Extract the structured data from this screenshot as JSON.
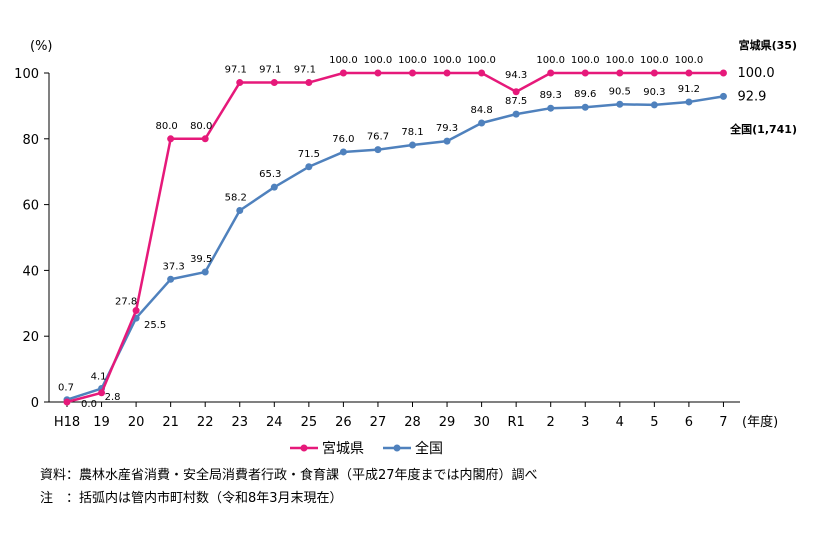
{
  "chart_data": {
    "type": "line",
    "y_unit": "(%)",
    "x_unit": "(年度)",
    "categories": [
      "H18",
      "19",
      "20",
      "21",
      "22",
      "23",
      "24",
      "25",
      "26",
      "27",
      "28",
      "29",
      "30",
      "R1",
      "2",
      "3",
      "4",
      "5",
      "6",
      "7"
    ],
    "ylim": [
      0,
      100
    ],
    "yticks": [
      0,
      20,
      40,
      60,
      80,
      100
    ],
    "grid": false,
    "legend_position": "bottom",
    "series": [
      {
        "name": "宮城県",
        "end_label": "宮城県(35)",
        "last_value_label": "100.0",
        "color": "#E6197A",
        "values": [
          0.0,
          2.8,
          27.8,
          80.0,
          80.0,
          97.1,
          97.1,
          97.1,
          100.0,
          100.0,
          100.0,
          100.0,
          100.0,
          94.3,
          100.0,
          100.0,
          100.0,
          100.0,
          100.0,
          100.0
        ],
        "labels": [
          "0.0",
          "2.8",
          "27.8",
          "80.0",
          "80.0",
          "97.1",
          "97.1",
          "97.1",
          "100.0",
          "100.0",
          "100.0",
          "100.0",
          "100.0",
          "94.3",
          "100.0",
          "100.0",
          "100.0",
          "100.0",
          "100.0",
          ""
        ]
      },
      {
        "name": "全国",
        "end_label": "全国(1,741)",
        "last_value_label": "92.9",
        "color": "#4F81BD",
        "values": [
          0.7,
          4.1,
          25.5,
          37.3,
          39.5,
          58.2,
          65.3,
          71.5,
          76.0,
          76.7,
          78.1,
          79.3,
          84.8,
          87.5,
          89.3,
          89.6,
          90.5,
          90.3,
          91.2,
          92.9
        ],
        "labels": [
          "0.7",
          "4.1",
          "25.5",
          "37.3",
          "39.5",
          "58.2",
          "65.3",
          "71.5",
          "76.0",
          "76.7",
          "78.1",
          "79.3",
          "84.8",
          "87.5",
          "89.3",
          "89.6",
          "90.5",
          "90.3",
          "91.2",
          ""
        ]
      }
    ]
  },
  "notes": {
    "source": "資料：農林水産省消費・安全局消費者行政・食育課（平成27年度までは内閣府）調べ",
    "remark": "注　：括弧内は管内市町村数（令和8年3月末現在）"
  }
}
